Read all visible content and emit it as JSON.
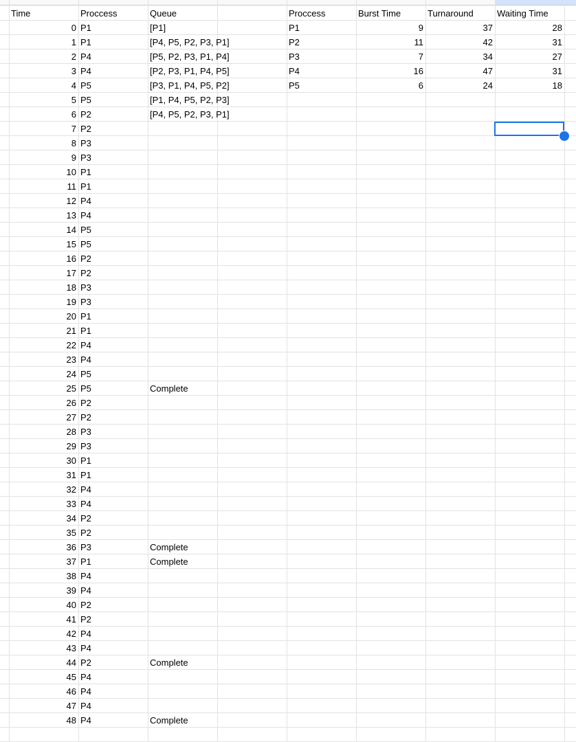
{
  "headers": {
    "time": "Time",
    "process": "Proccess",
    "queue": "Queue",
    "process2": "Proccess",
    "burst": "Burst Time",
    "turnaround": "Turnaround",
    "waiting": "Waiting Time"
  },
  "timeline": [
    {
      "time": "0",
      "process": "P1",
      "queue": "[P1]"
    },
    {
      "time": "1",
      "process": "P1",
      "queue": "[P4, P5, P2, P3, P1]"
    },
    {
      "time": "2",
      "process": "P4",
      "queue": "[P5, P2, P3, P1, P4]"
    },
    {
      "time": "3",
      "process": "P4",
      "queue": "[P2, P3, P1, P4, P5]"
    },
    {
      "time": "4",
      "process": "P5",
      "queue": "[P3, P1, P4, P5, P2]"
    },
    {
      "time": "5",
      "process": "P5",
      "queue": "[P1, P4, P5, P2, P3]"
    },
    {
      "time": "6",
      "process": "P2",
      "queue": "[P4, P5, P2, P3, P1]"
    },
    {
      "time": "7",
      "process": "P2",
      "queue": ""
    },
    {
      "time": "8",
      "process": "P3",
      "queue": ""
    },
    {
      "time": "9",
      "process": "P3",
      "queue": ""
    },
    {
      "time": "10",
      "process": "P1",
      "queue": ""
    },
    {
      "time": "11",
      "process": "P1",
      "queue": ""
    },
    {
      "time": "12",
      "process": "P4",
      "queue": ""
    },
    {
      "time": "13",
      "process": "P4",
      "queue": ""
    },
    {
      "time": "14",
      "process": "P5",
      "queue": ""
    },
    {
      "time": "15",
      "process": "P5",
      "queue": ""
    },
    {
      "time": "16",
      "process": "P2",
      "queue": ""
    },
    {
      "time": "17",
      "process": "P2",
      "queue": ""
    },
    {
      "time": "18",
      "process": "P3",
      "queue": ""
    },
    {
      "time": "19",
      "process": "P3",
      "queue": ""
    },
    {
      "time": "20",
      "process": "P1",
      "queue": ""
    },
    {
      "time": "21",
      "process": "P1",
      "queue": ""
    },
    {
      "time": "22",
      "process": "P4",
      "queue": ""
    },
    {
      "time": "23",
      "process": "P4",
      "queue": ""
    },
    {
      "time": "24",
      "process": "P5",
      "queue": ""
    },
    {
      "time": "25",
      "process": "P5",
      "queue": "Complete"
    },
    {
      "time": "26",
      "process": "P2",
      "queue": ""
    },
    {
      "time": "27",
      "process": "P2",
      "queue": ""
    },
    {
      "time": "28",
      "process": "P3",
      "queue": ""
    },
    {
      "time": "29",
      "process": "P3",
      "queue": ""
    },
    {
      "time": "30",
      "process": "P1",
      "queue": ""
    },
    {
      "time": "31",
      "process": "P1",
      "queue": ""
    },
    {
      "time": "32",
      "process": "P4",
      "queue": ""
    },
    {
      "time": "33",
      "process": "P4",
      "queue": ""
    },
    {
      "time": "34",
      "process": "P2",
      "queue": ""
    },
    {
      "time": "35",
      "process": "P2",
      "queue": ""
    },
    {
      "time": "36",
      "process": "P3",
      "queue": "Complete"
    },
    {
      "time": "37",
      "process": "P1",
      "queue": "Complete"
    },
    {
      "time": "38",
      "process": "P4",
      "queue": ""
    },
    {
      "time": "39",
      "process": "P4",
      "queue": ""
    },
    {
      "time": "40",
      "process": "P2",
      "queue": ""
    },
    {
      "time": "41",
      "process": "P2",
      "queue": ""
    },
    {
      "time": "42",
      "process": "P4",
      "queue": ""
    },
    {
      "time": "43",
      "process": "P4",
      "queue": ""
    },
    {
      "time": "44",
      "process": "P2",
      "queue": "Complete"
    },
    {
      "time": "45",
      "process": "P4",
      "queue": ""
    },
    {
      "time": "46",
      "process": "P4",
      "queue": ""
    },
    {
      "time": "47",
      "process": "P4",
      "queue": ""
    },
    {
      "time": "48",
      "process": "P4",
      "queue": "Complete"
    }
  ],
  "summary": [
    {
      "process": "P1",
      "burst": "9",
      "turnaround": "37",
      "waiting": "28"
    },
    {
      "process": "P2",
      "burst": "11",
      "turnaround": "42",
      "waiting": "31"
    },
    {
      "process": "P3",
      "burst": "7",
      "turnaround": "34",
      "waiting": "27"
    },
    {
      "process": "P4",
      "burst": "16",
      "turnaround": "47",
      "waiting": "31"
    },
    {
      "process": "P5",
      "burst": "6",
      "turnaround": "24",
      "waiting": "18"
    }
  ],
  "colors": {
    "grid": "#e2e2e2",
    "selection": "#1a73e8",
    "selected_header": "#d3e3fd"
  }
}
